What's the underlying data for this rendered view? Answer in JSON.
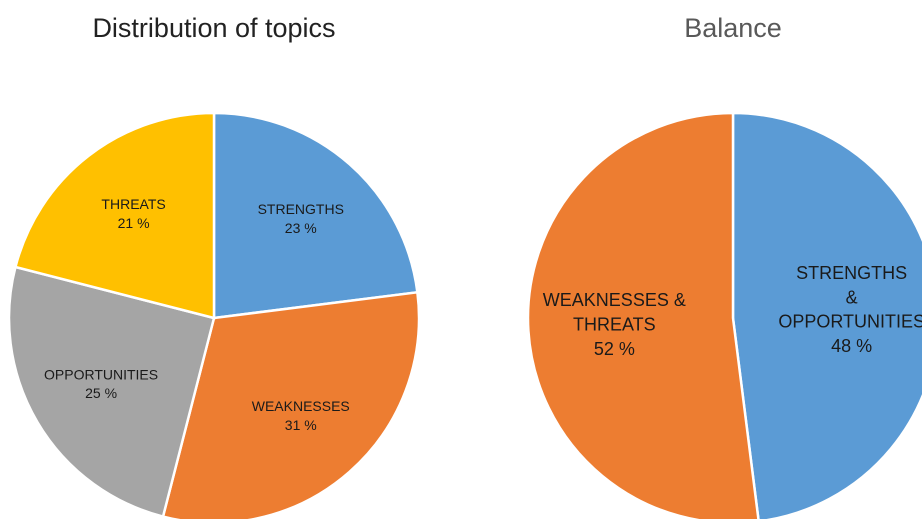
{
  "chart_data": [
    {
      "type": "pie",
      "title": "Distribution of topics",
      "categories": [
        "STRENGTHS",
        "WEAKNESSES",
        "OPPORTUNITIES",
        "THREATS"
      ],
      "values": [
        23,
        31,
        25,
        21
      ],
      "value_labels": [
        "23 %",
        "31 %",
        "25 %",
        "21 %"
      ],
      "colors": [
        "#5b9bd5",
        "#ed7d31",
        "#a5a5a5",
        "#ffc000"
      ]
    },
    {
      "type": "pie",
      "title": "Balance",
      "categories": [
        "STRENGTHS\n&\nOPPORTUNITIES",
        "WEAKNESSES &\nTHREATS"
      ],
      "values": [
        48,
        52
      ],
      "value_labels": [
        "48 %",
        "52 %"
      ],
      "colors": [
        "#5b9bd5",
        "#ed7d31"
      ]
    }
  ]
}
